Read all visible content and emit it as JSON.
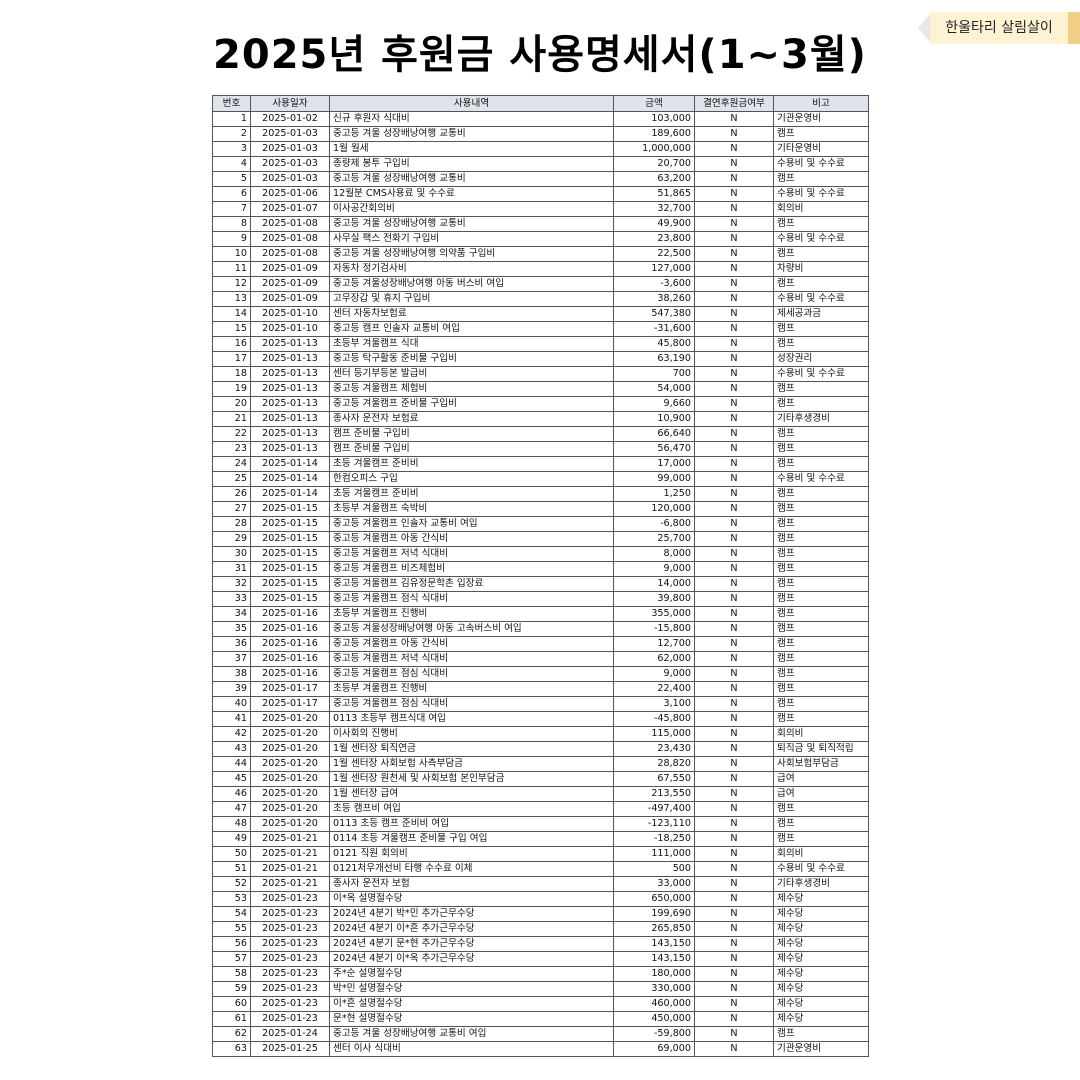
{
  "title": "2025년 후원금 사용명세서(1~3월)",
  "badge": "한울타리 살림살이",
  "table": {
    "headers": [
      "번호",
      "사용일자",
      "사용내역",
      "금액",
      "결연후원금여부",
      "비고"
    ],
    "rows": [
      [
        "1",
        "2025-01-02",
        "신규 후원자 식대비",
        "103,000",
        "N",
        "기관운영비"
      ],
      [
        "2",
        "2025-01-03",
        "중고등 겨울 성장배낭여행 교통비",
        "189,600",
        "N",
        "캠프"
      ],
      [
        "3",
        "2025-01-03",
        "1월 월세",
        "1,000,000",
        "N",
        "기타운영비"
      ],
      [
        "4",
        "2025-01-03",
        "종량제 봉투 구입비",
        "20,700",
        "N",
        "수용비 및 수수료"
      ],
      [
        "5",
        "2025-01-03",
        "중고등 겨울 성장배낭여행 교통비",
        "63,200",
        "N",
        "캠프"
      ],
      [
        "6",
        "2025-01-06",
        "12월분 CMS사용료 및 수수료",
        "51,865",
        "N",
        "수용비 및 수수료"
      ],
      [
        "7",
        "2025-01-07",
        "이사공간회의비",
        "32,700",
        "N",
        "회의비"
      ],
      [
        "8",
        "2025-01-08",
        "중고등 겨울 성장배낭여행 교통비",
        "49,900",
        "N",
        "캠프"
      ],
      [
        "9",
        "2025-01-08",
        "사무실 팩스 전화기 구입비",
        "23,800",
        "N",
        "수용비 및 수수료"
      ],
      [
        "10",
        "2025-01-08",
        "중고등 겨울 성장배낭여행 의약품 구입비",
        "22,500",
        "N",
        "캠프"
      ],
      [
        "11",
        "2025-01-09",
        "자동차 정기검사비",
        "127,000",
        "N",
        "차량비"
      ],
      [
        "12",
        "2025-01-09",
        "중고등 겨울성장배낭여행 아동 버스비 여입",
        "-3,600",
        "N",
        "캠프"
      ],
      [
        "13",
        "2025-01-09",
        "고무장갑 및 휴지 구입비",
        "38,260",
        "N",
        "수용비 및 수수료"
      ],
      [
        "14",
        "2025-01-10",
        "센터 자동차보험료",
        "547,380",
        "N",
        "제세공과금"
      ],
      [
        "15",
        "2025-01-10",
        "중고등 캠프 인솔자 교통비 여입",
        "-31,600",
        "N",
        "캠프"
      ],
      [
        "16",
        "2025-01-13",
        "초등부 겨울캠프 식대",
        "45,800",
        "N",
        "캠프"
      ],
      [
        "17",
        "2025-01-13",
        "중고등 탁구활동 준비물 구입비",
        "63,190",
        "N",
        "성장권리"
      ],
      [
        "18",
        "2025-01-13",
        "센터 등기부등본 발급비",
        "700",
        "N",
        "수용비 및 수수료"
      ],
      [
        "19",
        "2025-01-13",
        "중고등 겨울캠프 체험비",
        "54,000",
        "N",
        "캠프"
      ],
      [
        "20",
        "2025-01-13",
        "중고등 겨울캠프 준비물 구입비",
        "9,660",
        "N",
        "캠프"
      ],
      [
        "21",
        "2025-01-13",
        "종사자 운전자 보험료",
        "10,900",
        "N",
        "기타후생경비"
      ],
      [
        "22",
        "2025-01-13",
        "캠프 준비물 구입비",
        "66,640",
        "N",
        "캠프"
      ],
      [
        "23",
        "2025-01-13",
        "캠프 준비물 구입비",
        "56,470",
        "N",
        "캠프"
      ],
      [
        "24",
        "2025-01-14",
        "초등 겨울캠프 준비비",
        "17,000",
        "N",
        "캠프"
      ],
      [
        "25",
        "2025-01-14",
        "한컴오피스 구입",
        "99,000",
        "N",
        "수용비 및 수수료"
      ],
      [
        "26",
        "2025-01-14",
        "초등 겨울캠프 준비비",
        "1,250",
        "N",
        "캠프"
      ],
      [
        "27",
        "2025-01-15",
        "초등부 겨울캠프 숙박비",
        "120,000",
        "N",
        "캠프"
      ],
      [
        "28",
        "2025-01-15",
        "중고등 겨울캠프 인솔자 교통비 여입",
        "-6,800",
        "N",
        "캠프"
      ],
      [
        "29",
        "2025-01-15",
        "중고등 겨울캠프 아동 간식비",
        "25,700",
        "N",
        "캠프"
      ],
      [
        "30",
        "2025-01-15",
        "중고등 겨울캠프 저녁 식대비",
        "8,000",
        "N",
        "캠프"
      ],
      [
        "31",
        "2025-01-15",
        "중고등 겨울캠프 비즈체험비",
        "9,000",
        "N",
        "캠프"
      ],
      [
        "32",
        "2025-01-15",
        "중고등 겨울캠프 김유정문학촌 입장료",
        "14,000",
        "N",
        "캠프"
      ],
      [
        "33",
        "2025-01-15",
        "중고등 겨울캠프 점식 식대비",
        "39,800",
        "N",
        "캠프"
      ],
      [
        "34",
        "2025-01-16",
        "초등부 겨울캠프 진행비",
        "355,000",
        "N",
        "캠프"
      ],
      [
        "35",
        "2025-01-16",
        "중고등 겨울성장배낭여행 아동 고속버스비 여입",
        "-15,800",
        "N",
        "캠프"
      ],
      [
        "36",
        "2025-01-16",
        "중고등 겨울캠프 아동 간식비",
        "12,700",
        "N",
        "캠프"
      ],
      [
        "37",
        "2025-01-16",
        "중고등 겨울캠프 저녁 식대비",
        "62,000",
        "N",
        "캠프"
      ],
      [
        "38",
        "2025-01-16",
        "중고등 겨울캠프 점심 식대비",
        "9,000",
        "N",
        "캠프"
      ],
      [
        "39",
        "2025-01-17",
        "초등부 겨울캠프 진행비",
        "22,400",
        "N",
        "캠프"
      ],
      [
        "40",
        "2025-01-17",
        "중고등 겨울캠프 점심 식대비",
        "3,100",
        "N",
        "캠프"
      ],
      [
        "41",
        "2025-01-20",
        "0113 초등부 캠프식대 여입",
        "-45,800",
        "N",
        "캠프"
      ],
      [
        "42",
        "2025-01-20",
        "이사회의 진행비",
        "115,000",
        "N",
        "회의비"
      ],
      [
        "43",
        "2025-01-20",
        "1월 센터장 퇴직연금",
        "23,430",
        "N",
        "퇴직금 및 퇴직적립"
      ],
      [
        "44",
        "2025-01-20",
        "1월 센터장 사회보험 사측부담금",
        "28,820",
        "N",
        "사회보험부담금"
      ],
      [
        "45",
        "2025-01-20",
        "1월 센터장 원천세 및 사회보험 본인부담금",
        "67,550",
        "N",
        "급여"
      ],
      [
        "46",
        "2025-01-20",
        "1월 센터장 급여",
        "213,550",
        "N",
        "급여"
      ],
      [
        "47",
        "2025-01-20",
        "초등 캠프비 여입",
        "-497,400",
        "N",
        "캠프"
      ],
      [
        "48",
        "2025-01-20",
        "0113 초등 캠프 준비비 여입",
        "-123,110",
        "N",
        "캠프"
      ],
      [
        "49",
        "2025-01-21",
        "0114 초등 겨울캠프 준비물 구입 여입",
        "-18,250",
        "N",
        "캠프"
      ],
      [
        "50",
        "2025-01-21",
        "0121 직원 회의비",
        "111,000",
        "N",
        "회의비"
      ],
      [
        "51",
        "2025-01-21",
        "0121처우개선비 타행 수수료 이체",
        "500",
        "N",
        "수용비 및 수수료"
      ],
      [
        "52",
        "2025-01-21",
        "종사자 운전자 보험",
        "33,000",
        "N",
        "기타후생경비"
      ],
      [
        "53",
        "2025-01-23",
        "이*옥 설명절수당",
        "650,000",
        "N",
        "제수당"
      ],
      [
        "54",
        "2025-01-23",
        "2024년 4분기 박*민 추가근무수당",
        "199,690",
        "N",
        "제수당"
      ],
      [
        "55",
        "2025-01-23",
        "2024년 4분기 이*흔 추가근무수당",
        "265,850",
        "N",
        "제수당"
      ],
      [
        "56",
        "2025-01-23",
        "2024년 4분기 문*현 추가근무수당",
        "143,150",
        "N",
        "제수당"
      ],
      [
        "57",
        "2025-01-23",
        "2024년 4분기 이*옥 추가근무수당",
        "143,150",
        "N",
        "제수당"
      ],
      [
        "58",
        "2025-01-23",
        "주*순 설명절수당",
        "180,000",
        "N",
        "제수당"
      ],
      [
        "59",
        "2025-01-23",
        "박*민 설명절수당",
        "330,000",
        "N",
        "제수당"
      ],
      [
        "60",
        "2025-01-23",
        "이*흔 설명절수당",
        "460,000",
        "N",
        "제수당"
      ],
      [
        "61",
        "2025-01-23",
        "문*현 설명절수당",
        "450,000",
        "N",
        "제수당"
      ],
      [
        "62",
        "2025-01-24",
        "중고등 겨울 성장배낭여행 교통비 여입",
        "-59,800",
        "N",
        "캠프"
      ],
      [
        "63",
        "2025-01-25",
        "센터 이사 식대비",
        "69,000",
        "N",
        "기관운영비"
      ]
    ]
  }
}
